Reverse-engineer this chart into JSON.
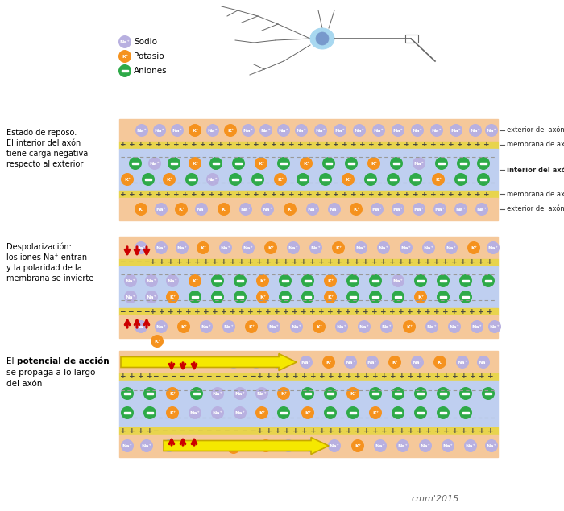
{
  "bg_color": "#ffffff",
  "exterior_color": "#f5c89a",
  "membrane_color": "#e8d44d",
  "interior_color": "#bfcff0",
  "na_color": "#b8b0e0",
  "k_color": "#f5921e",
  "anion_color": "#2eaa48",
  "arrow_color": "#f5e800",
  "arrow_edge_color": "#c8a800",
  "red_arrow_color": "#cc0000",
  "section1_label": [
    "Estado de reposo.",
    "El interior del axón",
    "tiene carga negativa",
    "respecto al exterior"
  ],
  "section2_label": [
    "Despolarización:",
    "los iones Na⁺ entran",
    "y la polaridad de la",
    "membrana se invierte"
  ],
  "right_labels": [
    "exterior del axón",
    "membrana de axón",
    "interior del axón",
    "membrana de axón",
    "exterior del axón"
  ],
  "credit": "cmm'2015",
  "neuron_color": "#a8d8f0",
  "neuron_edge": "#888888",
  "nucleus_color": "#7799cc"
}
